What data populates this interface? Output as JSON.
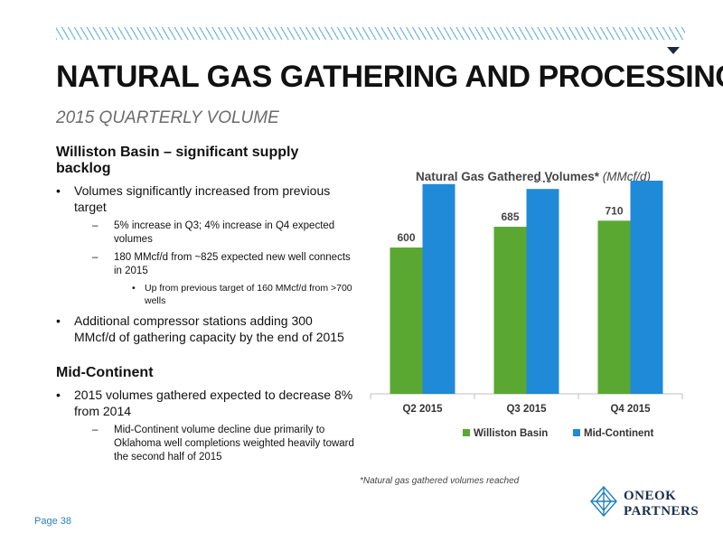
{
  "header": {
    "title": "NATURAL GAS GATHERING AND PROCESSING",
    "subtitle": "2015 QUARTERLY VOLUME"
  },
  "sections": [
    {
      "heading": "Williston Basin – significant supply backlog",
      "bullets": [
        {
          "text": "Volumes significantly increased from previous target",
          "sub": [
            {
              "text": "5% increase in Q3; 4% increase in Q4 expected volumes"
            },
            {
              "text": "180 MMcf/d from ~825 expected new well connects in 2015",
              "sub": [
                {
                  "text": "Up from previous target of 160 MMcf/d from >700 wells"
                }
              ]
            }
          ]
        },
        {
          "text": "Additional compressor stations adding 300 MMcf/d of gathering capacity by the end of 2015"
        }
      ]
    },
    {
      "heading": "Mid-Continent",
      "bullets": [
        {
          "text": "2015 volumes gathered expected to decrease 8% from 2014",
          "sub": [
            {
              "text": "Mid-Continent volume decline due primarily to Oklahoma well completions weighted heavily toward the second half of  2015"
            }
          ]
        }
      ]
    }
  ],
  "chart_data": {
    "type": "bar",
    "title": "Natural Gas Gathered Volumes*",
    "unit_label": "(MMcf/d)",
    "categories": [
      "Q2 2015",
      "Q3 2015",
      "Q4 2015"
    ],
    "series": [
      {
        "name": "Williston Basin",
        "values": [
          600,
          685,
          710
        ],
        "color": "#5aa832"
      },
      {
        "name": "Mid-Continent",
        "values": [
          860,
          840,
          910
        ],
        "color": "#1f8ad8"
      }
    ],
    "ylim": [
      0,
      1000
    ],
    "grid": false,
    "legend": "bottom"
  },
  "footnote": "*Natural gas gathered volumes reached",
  "page_label": "Page 38",
  "logo": {
    "line1": "ONEOK",
    "line2": "PARTNERS"
  },
  "colors": {
    "accent": "#2a7fc4",
    "hatch": "#6fb7d9",
    "green": "#5aa832",
    "blue": "#1f8ad8"
  }
}
